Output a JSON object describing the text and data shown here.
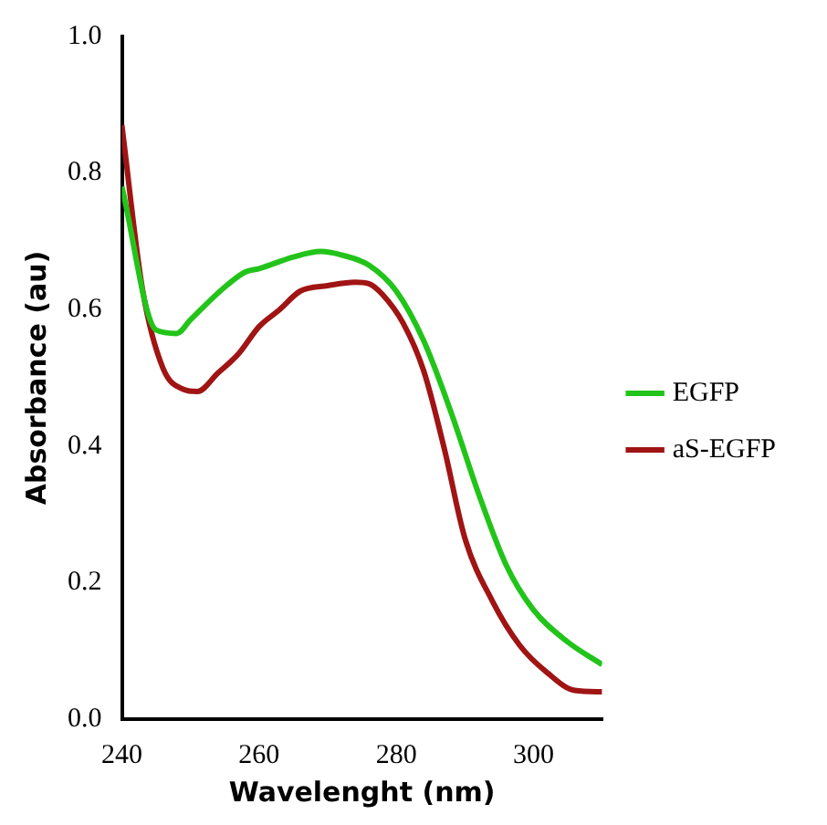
{
  "chart_data": {
    "type": "line",
    "xlabel": "Wavelenght (nm)",
    "ylabel": "Absorbance (au)",
    "xlim": [
      240,
      310
    ],
    "xticks": [
      240,
      260,
      280,
      300
    ],
    "ylim": [
      0,
      1
    ],
    "yticks": [
      {
        "value": 0,
        "label": "0.0"
      },
      {
        "value": 0.2,
        "label": "0.2"
      },
      {
        "value": 0.4,
        "label": "0.4"
      },
      {
        "value": 0.6,
        "label": "0.6"
      },
      {
        "value": 0.8,
        "label": "0.8"
      },
      {
        "value": 1,
        "label": "1.0"
      }
    ],
    "grid": false,
    "legend": "right",
    "marker": "none",
    "line_style": "solid",
    "series": [
      {
        "name": "EGFP",
        "color": "#22c41a",
        "x": [
          240,
          245,
          248,
          250,
          255,
          258,
          260,
          265,
          269,
          272,
          276,
          280,
          284,
          288,
          292,
          296,
          300,
          305,
          310
        ],
        "values": [
          0.78,
          0.57,
          0.565,
          0.585,
          0.633,
          0.655,
          0.66,
          0.677,
          0.685,
          0.68,
          0.665,
          0.627,
          0.554,
          0.449,
          0.33,
          0.226,
          0.16,
          0.113,
          0.08
        ]
      },
      {
        "name": "aS-EGFP",
        "color": "#a01414",
        "x": [
          240,
          243,
          246,
          249,
          251,
          254,
          257,
          260,
          263,
          266,
          270,
          274,
          276,
          278,
          281,
          284,
          287,
          290,
          294,
          298,
          302,
          306,
          310
        ],
        "values": [
          0.87,
          0.63,
          0.514,
          0.483,
          0.48,
          0.507,
          0.535,
          0.575,
          0.6,
          0.627,
          0.635,
          0.64,
          0.638,
          0.622,
          0.58,
          0.51,
          0.396,
          0.265,
          0.173,
          0.108,
          0.068,
          0.042,
          0.04
        ]
      }
    ]
  }
}
